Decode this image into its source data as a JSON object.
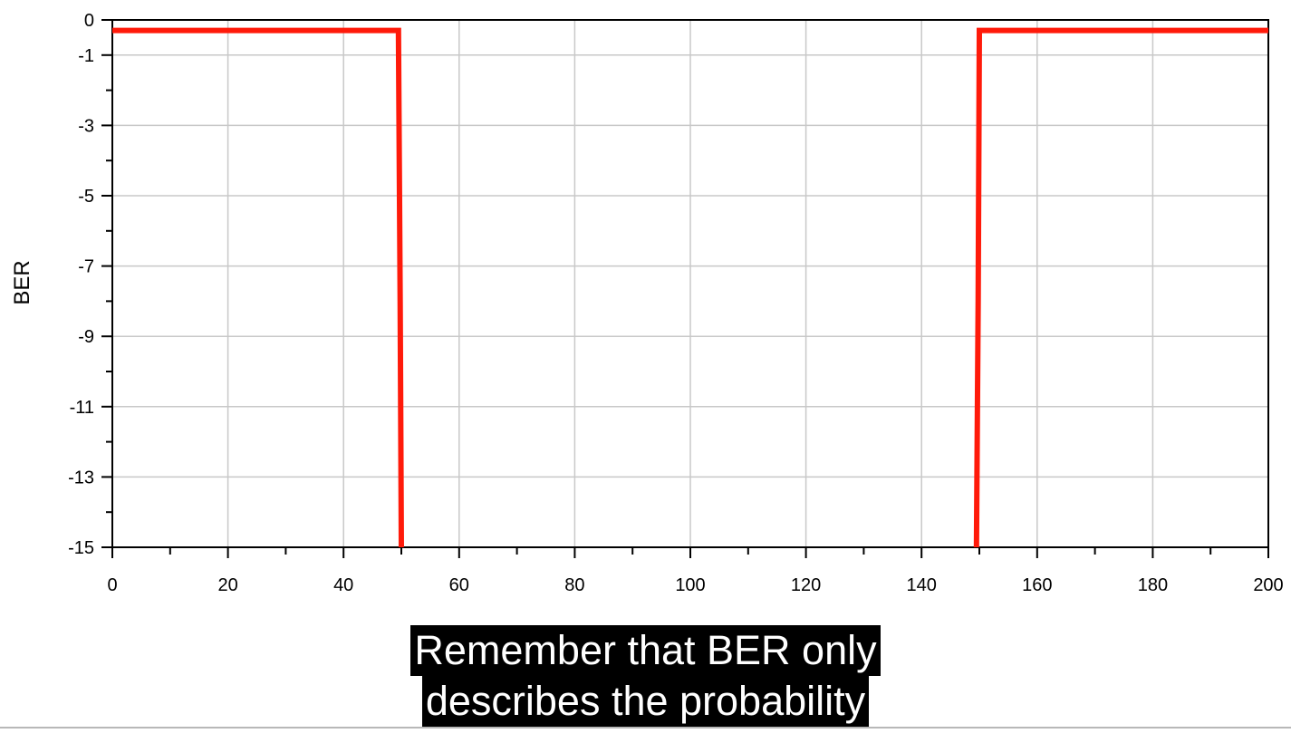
{
  "chart_data": {
    "type": "line",
    "title": "",
    "xlabel": "",
    "ylabel": "BER",
    "xlim": [
      0,
      200
    ],
    "ylim": [
      -15,
      0
    ],
    "x_ticks": [
      0,
      20,
      40,
      60,
      80,
      100,
      120,
      140,
      160,
      180,
      200
    ],
    "y_ticks": [
      0,
      -1,
      -3,
      -5,
      -7,
      -9,
      -11,
      -13,
      -15
    ],
    "grid": true,
    "series": [
      {
        "color": "#ff1a0a",
        "x": [
          0,
          49.5,
          49.8,
          50,
          50,
          149.5,
          149.5,
          149.8,
          150,
          200
        ],
        "y": [
          -0.3,
          -0.3,
          -8,
          -15,
          -15,
          -15,
          -15,
          -8,
          -0.3,
          -0.3
        ]
      }
    ]
  },
  "caption": {
    "line1": "Remember that BER only",
    "line2": "describes the probability"
  }
}
